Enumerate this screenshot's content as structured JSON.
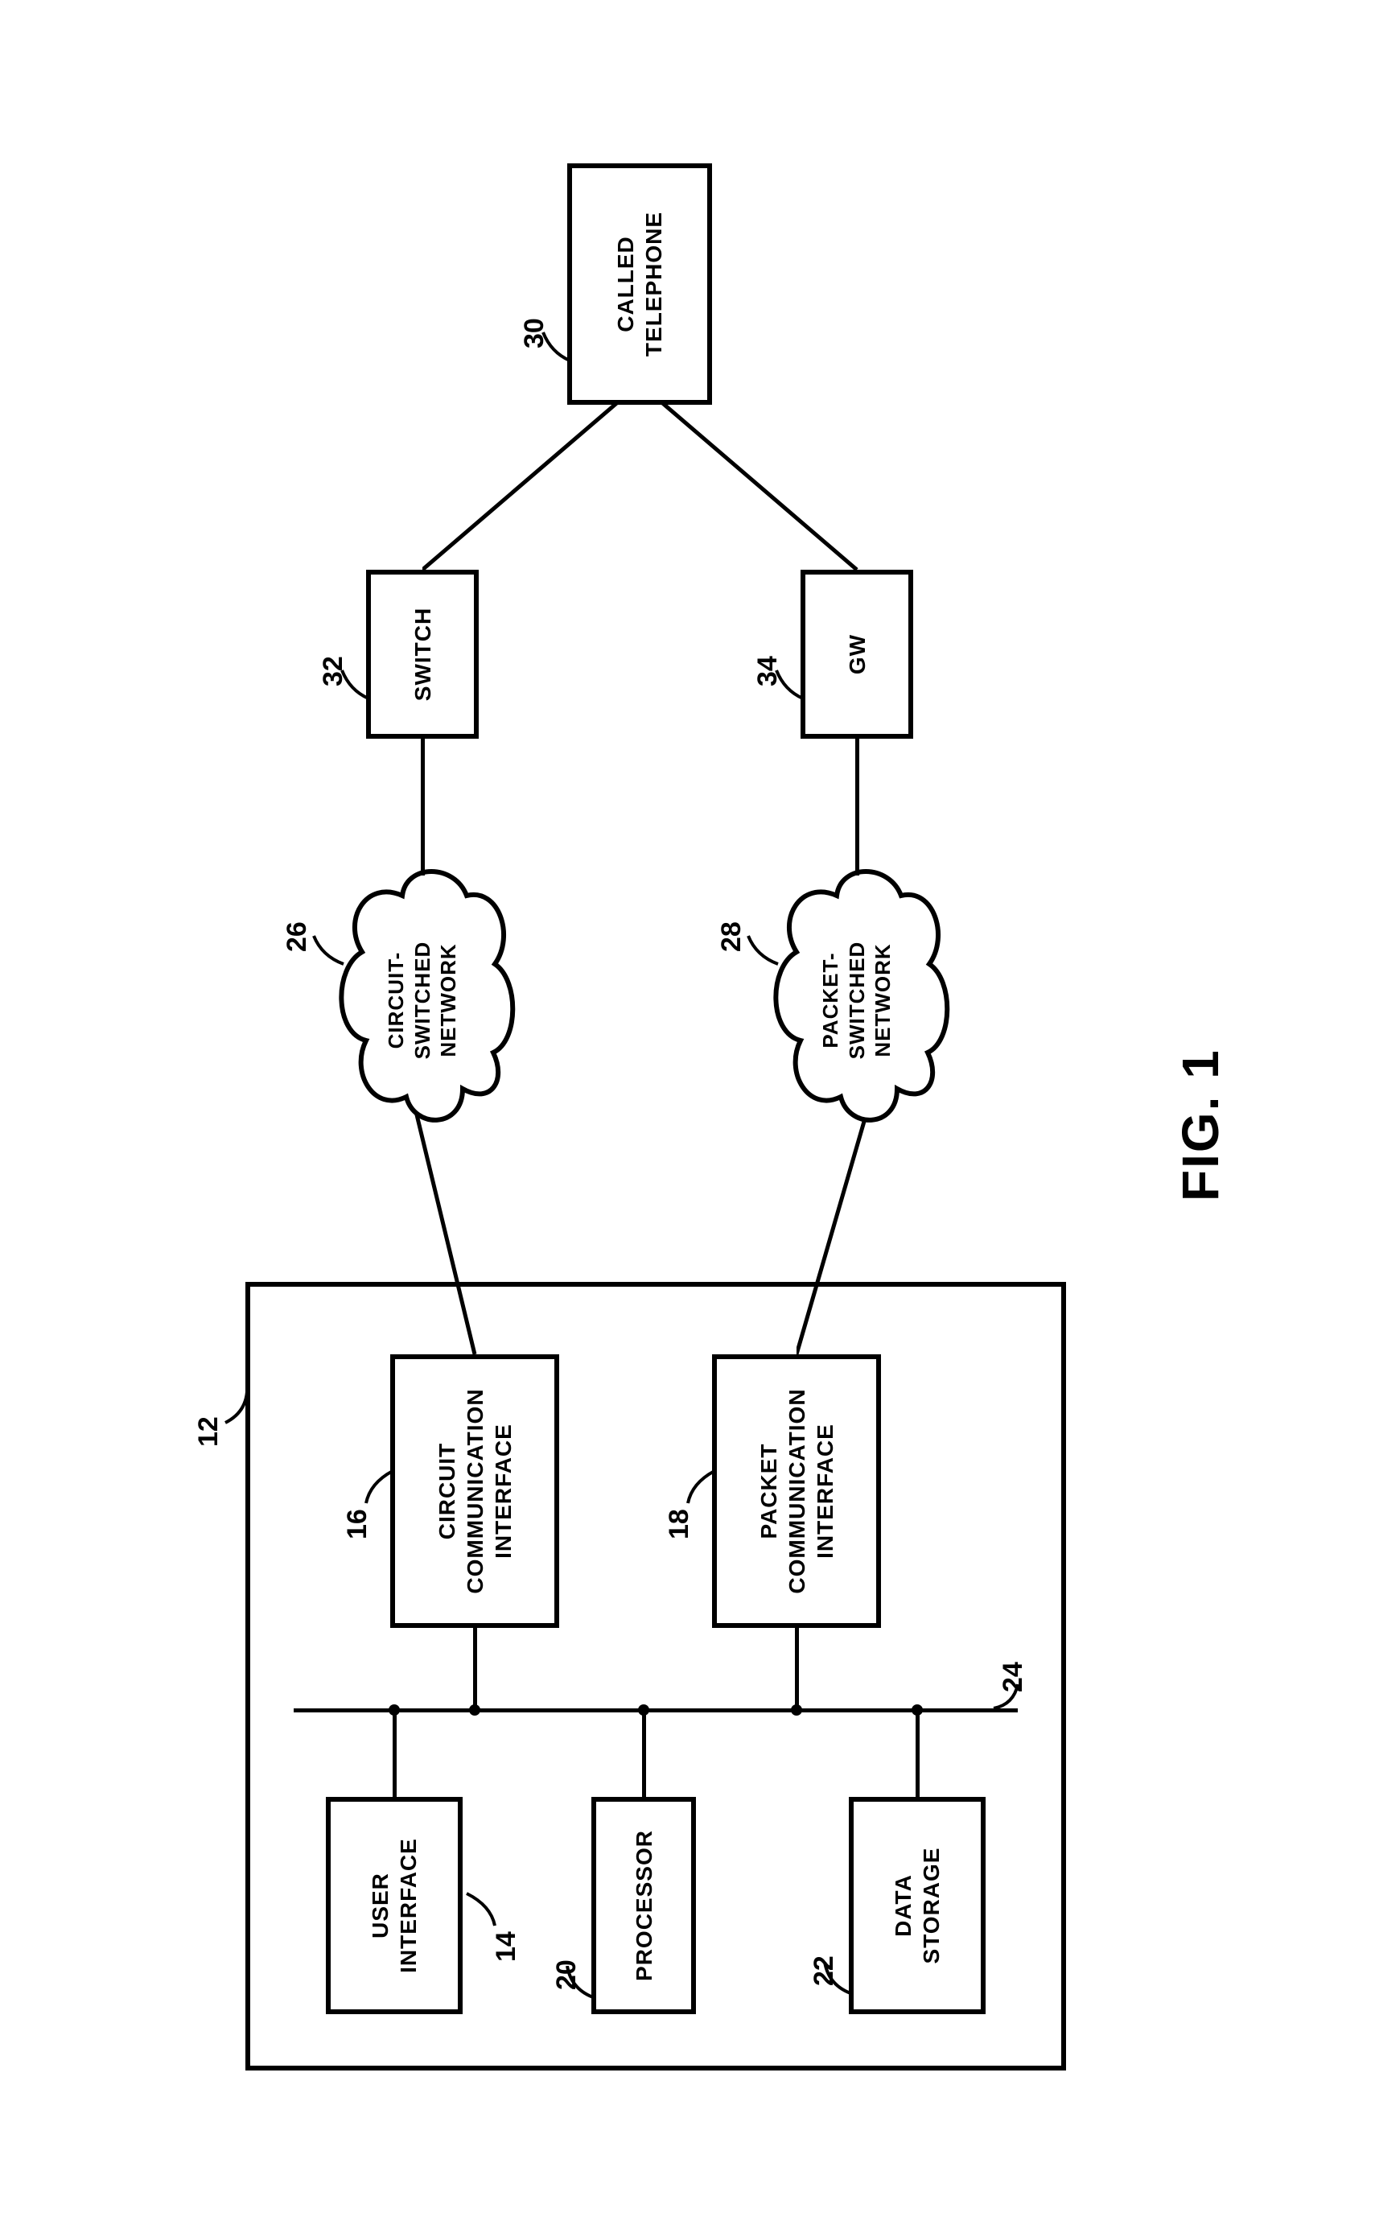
{
  "figure_label": "FIG. 1",
  "blocks": {
    "outer": {
      "ref": "12"
    },
    "user_interface": {
      "label": "USER\nINTERFACE",
      "ref": "14"
    },
    "processor": {
      "label": "PROCESSOR",
      "ref": "20"
    },
    "data_storage": {
      "label": "DATA\nSTORAGE",
      "ref": "22"
    },
    "circuit_comm": {
      "label": "CIRCUIT\nCOMMUNICATION\nINTERFACE",
      "ref": "16"
    },
    "packet_comm": {
      "label": "PACKET\nCOMMUNICATION\nINTERFACE",
      "ref": "18"
    },
    "bus": {
      "ref": "24"
    },
    "circuit_net": {
      "label": "CIRCUIT-\nSWITCHED\nNETWORK",
      "ref": "26"
    },
    "packet_net": {
      "label": "PACKET-\nSWITCHED\nNETWORK",
      "ref": "28"
    },
    "switch": {
      "label": "SWITCH",
      "ref": "32"
    },
    "gw": {
      "label": "GW",
      "ref": "34"
    },
    "called_phone": {
      "label": "CALLED\nTELEPHONE",
      "ref": "30"
    }
  },
  "style": {
    "stroke_width": 6,
    "font_size_block": 28,
    "font_size_ref": 34,
    "font_size_fig": 64,
    "color": "#000000",
    "background": "#ffffff"
  },
  "layout_note": "Patent block diagram rotated 90° CCW on page; horizontal flow from device (box 12) through networks to called telephone."
}
